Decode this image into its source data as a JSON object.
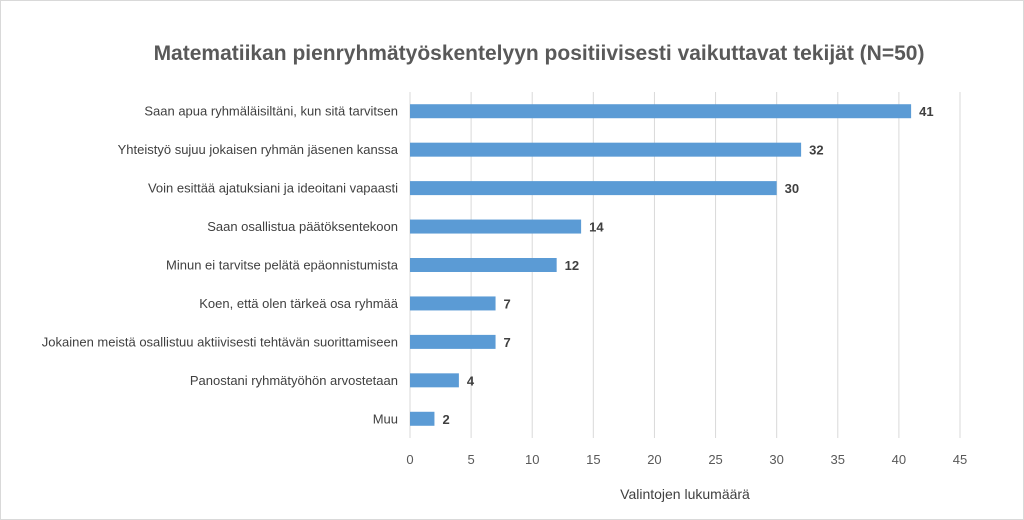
{
  "chart_data": {
    "type": "bar",
    "orientation": "horizontal",
    "title": "Matematiikan pienryhmätyöskentelyyn positiivisesti vaikuttavat tekijät (N=50)",
    "xlabel": "Valintojen lukumäärä",
    "ylabel": "",
    "categories": [
      "Saan apua ryhmäläisiltäni, kun sitä tarvitsen",
      "Yhteistyö sujuu jokaisen ryhmän jäsenen kanssa",
      "Voin esittää ajatuksiani ja ideoitani vapaasti",
      "Saan osallistua päätöksentekoon",
      "Minun ei tarvitse pelätä epäonnistumista",
      "Koen, että olen tärkeä osa ryhmää",
      "Jokainen meistä osallistuu aktiivisesti tehtävän suorittamiseen",
      "Panostani ryhmätyöhön arvostetaan",
      "Muu"
    ],
    "values": [
      41,
      32,
      30,
      14,
      12,
      7,
      7,
      4,
      2
    ],
    "xlim": [
      0,
      45
    ],
    "xticks": [
      "0",
      "5",
      "10",
      "15",
      "20",
      "25",
      "30",
      "35",
      "40",
      "45"
    ],
    "grid": true,
    "legend": "none",
    "bar_color": "#5b9bd5",
    "gridline_color": "#d9d9d9"
  }
}
